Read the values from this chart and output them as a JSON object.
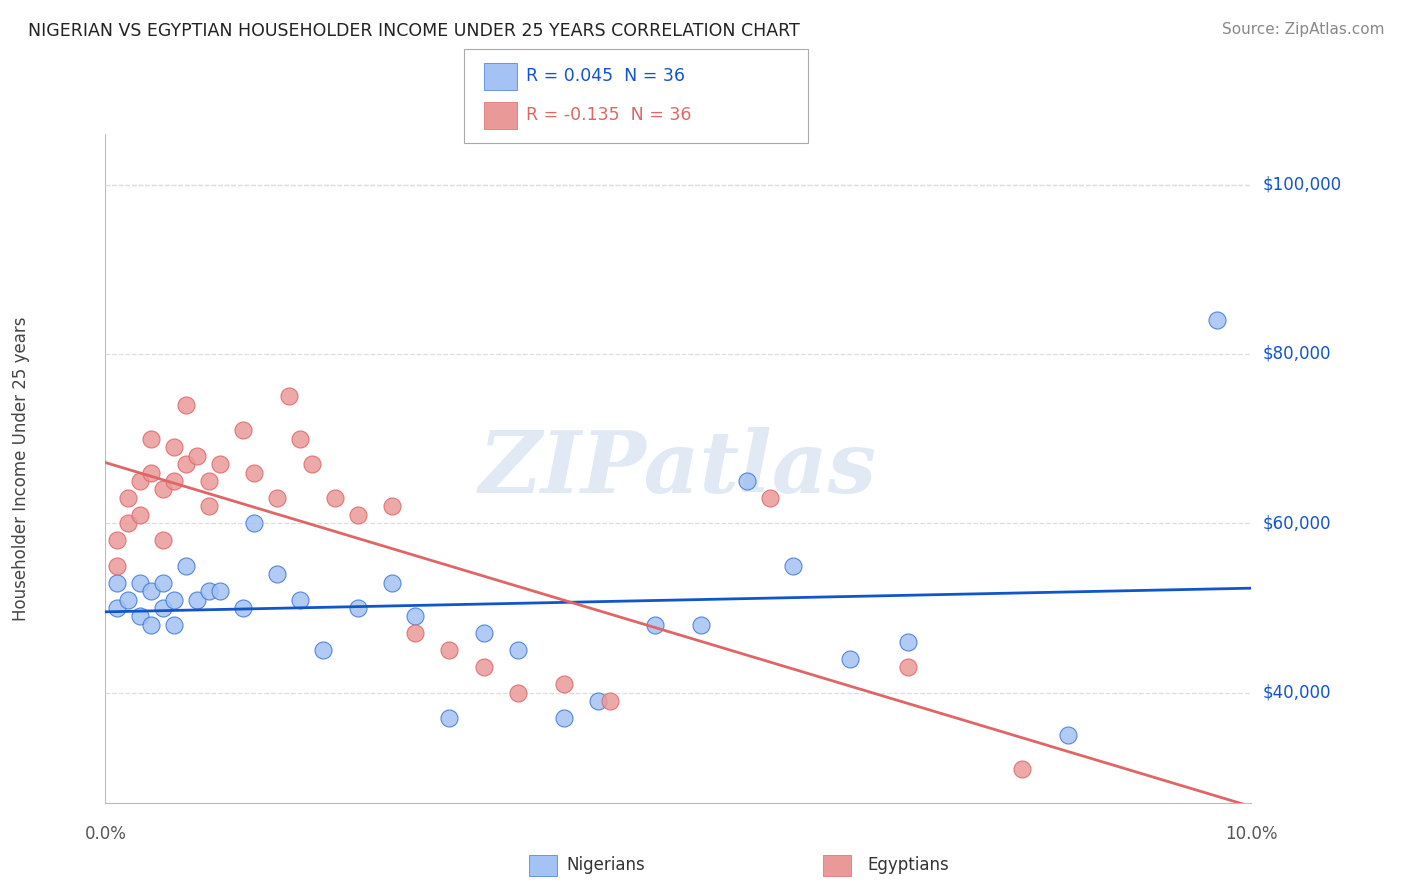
{
  "title": "NIGERIAN VS EGYPTIAN HOUSEHOLDER INCOME UNDER 25 YEARS CORRELATION CHART",
  "source": "Source: ZipAtlas.com",
  "ylabel": "Householder Income Under 25 years",
  "xlim": [
    0.0,
    0.1
  ],
  "ylim": [
    27000,
    106000
  ],
  "yticks": [
    40000,
    60000,
    80000,
    100000
  ],
  "ytick_labels": [
    "$40,000",
    "$60,000",
    "$80,000",
    "$100,000"
  ],
  "watermark": "ZIPatlas",
  "nigerian_color": "#a4c2f4",
  "egyptian_color": "#ea9999",
  "nigerian_edge_color": "#3c78d8",
  "egyptian_edge_color": "#e06666",
  "nigerian_line_color": "#1155cc",
  "egyptian_line_color": "#e06666",
  "background_color": "#ffffff",
  "grid_color": "#dddddd",
  "legend_nigerian": "R = 0.045  N = 36",
  "legend_egyptian": "R = -0.135  N = 36",
  "bottom_legend_1": "Nigerians",
  "bottom_legend_2": "Egyptians",
  "nigerian_x": [
    0.001,
    0.001,
    0.002,
    0.003,
    0.003,
    0.004,
    0.004,
    0.005,
    0.005,
    0.006,
    0.006,
    0.007,
    0.008,
    0.009,
    0.01,
    0.012,
    0.013,
    0.015,
    0.017,
    0.019,
    0.022,
    0.025,
    0.027,
    0.03,
    0.033,
    0.036,
    0.04,
    0.043,
    0.048,
    0.052,
    0.056,
    0.06,
    0.065,
    0.07,
    0.084,
    0.097
  ],
  "nigerian_y": [
    53000,
    50000,
    51000,
    53000,
    49000,
    52000,
    48000,
    53000,
    50000,
    51000,
    48000,
    55000,
    51000,
    52000,
    52000,
    50000,
    60000,
    54000,
    51000,
    45000,
    50000,
    53000,
    49000,
    37000,
    47000,
    45000,
    37000,
    39000,
    48000,
    48000,
    65000,
    55000,
    44000,
    46000,
    35000,
    84000
  ],
  "egyptian_x": [
    0.001,
    0.001,
    0.002,
    0.002,
    0.003,
    0.003,
    0.004,
    0.004,
    0.005,
    0.005,
    0.006,
    0.006,
    0.007,
    0.007,
    0.008,
    0.009,
    0.009,
    0.01,
    0.012,
    0.013,
    0.015,
    0.016,
    0.017,
    0.018,
    0.02,
    0.022,
    0.025,
    0.027,
    0.03,
    0.033,
    0.036,
    0.04,
    0.044,
    0.058,
    0.07,
    0.08
  ],
  "egyptian_y": [
    55000,
    58000,
    60000,
    63000,
    61000,
    65000,
    66000,
    70000,
    64000,
    58000,
    69000,
    65000,
    67000,
    74000,
    68000,
    65000,
    62000,
    67000,
    71000,
    66000,
    63000,
    75000,
    70000,
    67000,
    63000,
    61000,
    62000,
    47000,
    45000,
    43000,
    40000,
    41000,
    39000,
    63000,
    43000,
    31000
  ]
}
